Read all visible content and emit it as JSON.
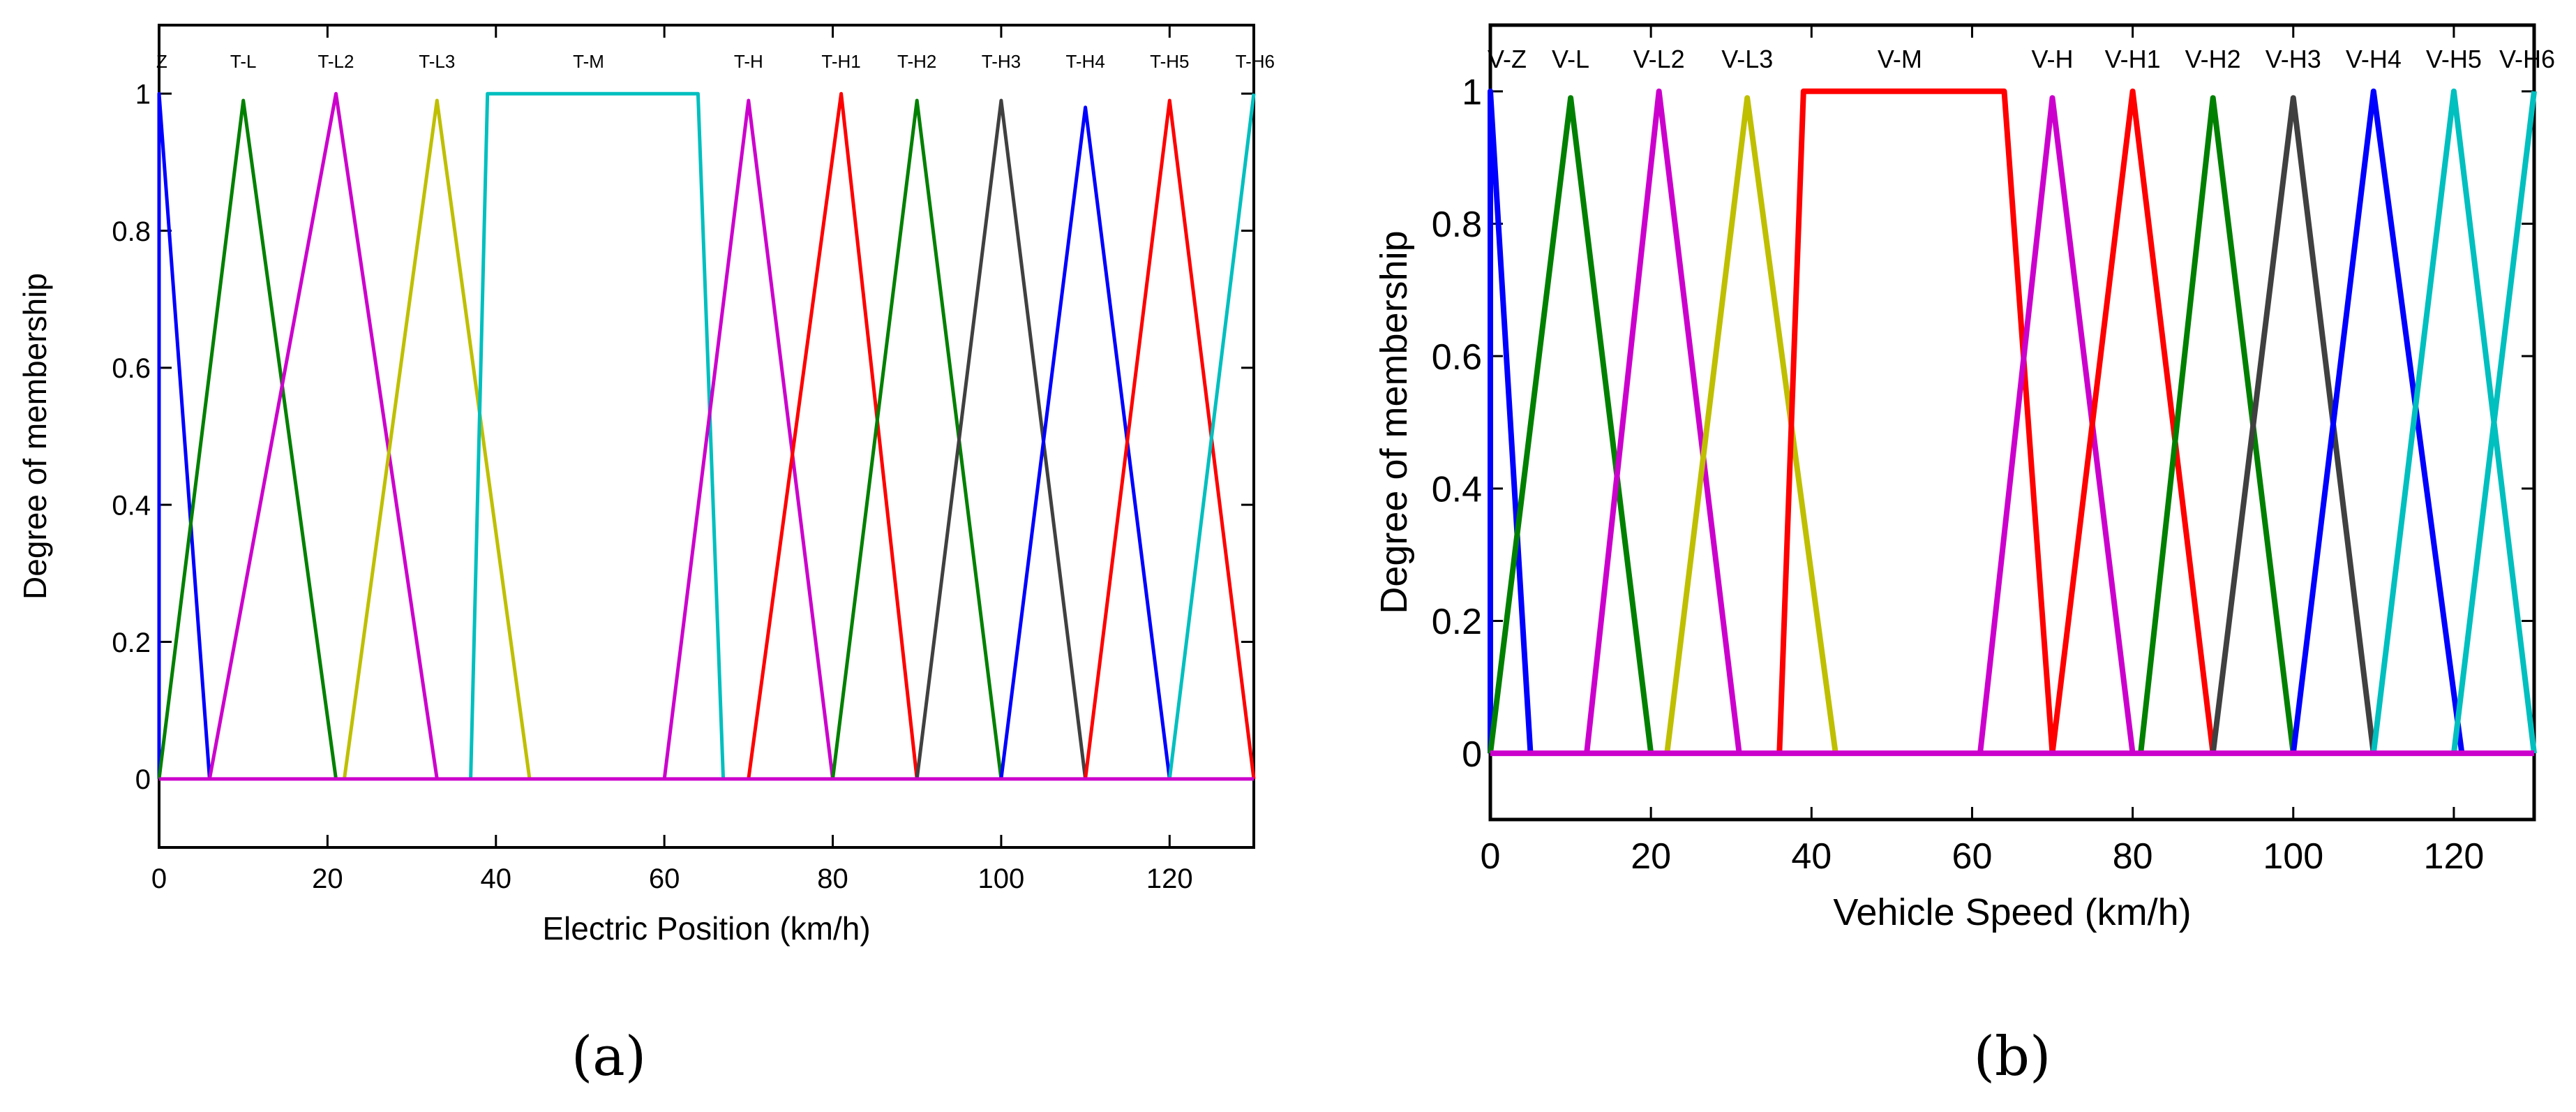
{
  "chart_data": [
    {
      "type": "line",
      "panel": "a",
      "caption": "(a)",
      "xlabel": "Electric Position (km/h)",
      "ylabel": "Degree of membership",
      "xlim": [
        0,
        130
      ],
      "ylim": [
        -0.1,
        1.1
      ],
      "xticks": [
        0,
        20,
        40,
        60,
        80,
        100,
        120
      ],
      "yticks": [
        0,
        0.2,
        0.4,
        0.6,
        0.8,
        1
      ],
      "xtick_labels": [
        "0",
        "20",
        "40",
        "60",
        "80",
        "100",
        "120"
      ],
      "ytick_labels": [
        "0",
        "0.2",
        "0.4",
        "0.6",
        "0.8",
        "1"
      ],
      "grid": false,
      "series": [
        {
          "name": "Z",
          "label_x": 0,
          "color": "#0000ff",
          "x": [
            0,
            0,
            6
          ],
          "y": [
            0,
            1,
            0
          ]
        },
        {
          "name": "T-L",
          "label_x": 10,
          "color": "#008000",
          "x": [
            0,
            10,
            21
          ],
          "y": [
            0,
            0.99,
            0
          ]
        },
        {
          "name": "T-L2",
          "label_x": 21,
          "color": "#cc00cc",
          "x": [
            6,
            21,
            33
          ],
          "y": [
            0,
            1,
            0
          ]
        },
        {
          "name": "T-L3",
          "label_x": 33,
          "color": "#bfbf00",
          "x": [
            22,
            33,
            44
          ],
          "y": [
            0,
            0.99,
            0
          ]
        },
        {
          "name": "T-M",
          "label_x": 51,
          "color": "#00bfbf",
          "x": [
            37,
            39,
            64,
            67
          ],
          "y": [
            0,
            1,
            1,
            0
          ]
        },
        {
          "name": "T-H",
          "label_x": 70,
          "color": "#cc00cc",
          "x": [
            60,
            70,
            80
          ],
          "y": [
            0,
            0.99,
            0
          ]
        },
        {
          "name": "T-H1",
          "label_x": 81,
          "color": "#ff0000",
          "x": [
            70,
            81,
            90
          ],
          "y": [
            0,
            1,
            0
          ]
        },
        {
          "name": "T-H2",
          "label_x": 90,
          "color": "#008000",
          "x": [
            80,
            90,
            100
          ],
          "y": [
            0,
            0.99,
            0
          ]
        },
        {
          "name": "T-H3",
          "label_x": 100,
          "color": "#404040",
          "x": [
            90,
            100,
            110
          ],
          "y": [
            0,
            0.99,
            0
          ]
        },
        {
          "name": "T-H4",
          "label_x": 110,
          "color": "#0000ff",
          "x": [
            100,
            110,
            120
          ],
          "y": [
            0,
            0.98,
            0
          ]
        },
        {
          "name": "T-H5",
          "label_x": 120,
          "color": "#ff0000",
          "x": [
            110,
            120,
            130
          ],
          "y": [
            0,
            0.99,
            0
          ]
        },
        {
          "name": "T-H6",
          "label_x": 129,
          "color": "#00bfbf",
          "x": [
            120,
            130
          ],
          "y": [
            0,
            1
          ]
        }
      ]
    },
    {
      "type": "line",
      "panel": "b",
      "caption": "(b)",
      "xlabel": "Vehicle Speed (km/h)",
      "ylabel": "Degree of membership",
      "xlim": [
        0,
        130
      ],
      "ylim": [
        -0.1,
        1.1
      ],
      "xticks": [
        0,
        20,
        40,
        60,
        80,
        100,
        120
      ],
      "yticks": [
        0,
        0.2,
        0.4,
        0.6,
        0.8,
        1
      ],
      "xtick_labels": [
        "0",
        "20",
        "40",
        "60",
        "80",
        "100",
        "120"
      ],
      "ytick_labels": [
        "0",
        "0.2",
        "0.4",
        "0.6",
        "0.8",
        "1"
      ],
      "grid": false,
      "series": [
        {
          "name": "V-Z",
          "label_x": 0,
          "color": "#0000ff",
          "x": [
            0,
            0,
            5
          ],
          "y": [
            0,
            1,
            0
          ]
        },
        {
          "name": "V-L",
          "label_x": 10,
          "color": "#008000",
          "x": [
            0,
            10,
            20
          ],
          "y": [
            0,
            0.99,
            0
          ]
        },
        {
          "name": "V-L2",
          "label_x": 21,
          "color": "#cc00cc",
          "x": [
            12,
            21,
            31
          ],
          "y": [
            0,
            1,
            0
          ]
        },
        {
          "name": "V-L3",
          "label_x": 32,
          "color": "#bfbf00",
          "x": [
            22,
            32,
            43
          ],
          "y": [
            0,
            0.99,
            0
          ]
        },
        {
          "name": "V-M",
          "label_x": 51,
          "color": "#ff0000",
          "x": [
            36,
            39,
            64,
            70
          ],
          "y": [
            0,
            1,
            1,
            0
          ]
        },
        {
          "name": "V-H",
          "label_x": 70,
          "color": "#cc00cc",
          "x": [
            61,
            70,
            80
          ],
          "y": [
            0,
            0.99,
            0
          ]
        },
        {
          "name": "V-H1",
          "label_x": 80,
          "color": "#ff0000",
          "x": [
            70,
            80,
            90
          ],
          "y": [
            0,
            1,
            0
          ]
        },
        {
          "name": "V-H2",
          "label_x": 90,
          "color": "#008000",
          "x": [
            81,
            90,
            100
          ],
          "y": [
            0,
            0.99,
            0
          ]
        },
        {
          "name": "V-H3",
          "label_x": 100,
          "color": "#404040",
          "x": [
            90,
            100,
            110
          ],
          "y": [
            0,
            0.99,
            0
          ]
        },
        {
          "name": "V-H4",
          "label_x": 110,
          "color": "#0000ff",
          "x": [
            100,
            110,
            121
          ],
          "y": [
            0,
            1,
            0
          ]
        },
        {
          "name": "V-H5",
          "label_x": 120,
          "color": "#00bfbf",
          "x": [
            110,
            120,
            130
          ],
          "y": [
            0,
            1,
            0
          ]
        },
        {
          "name": "V-H6",
          "label_x": 129,
          "color": "#00bfbf",
          "x": [
            120,
            130
          ],
          "y": [
            0,
            1
          ]
        }
      ]
    }
  ]
}
